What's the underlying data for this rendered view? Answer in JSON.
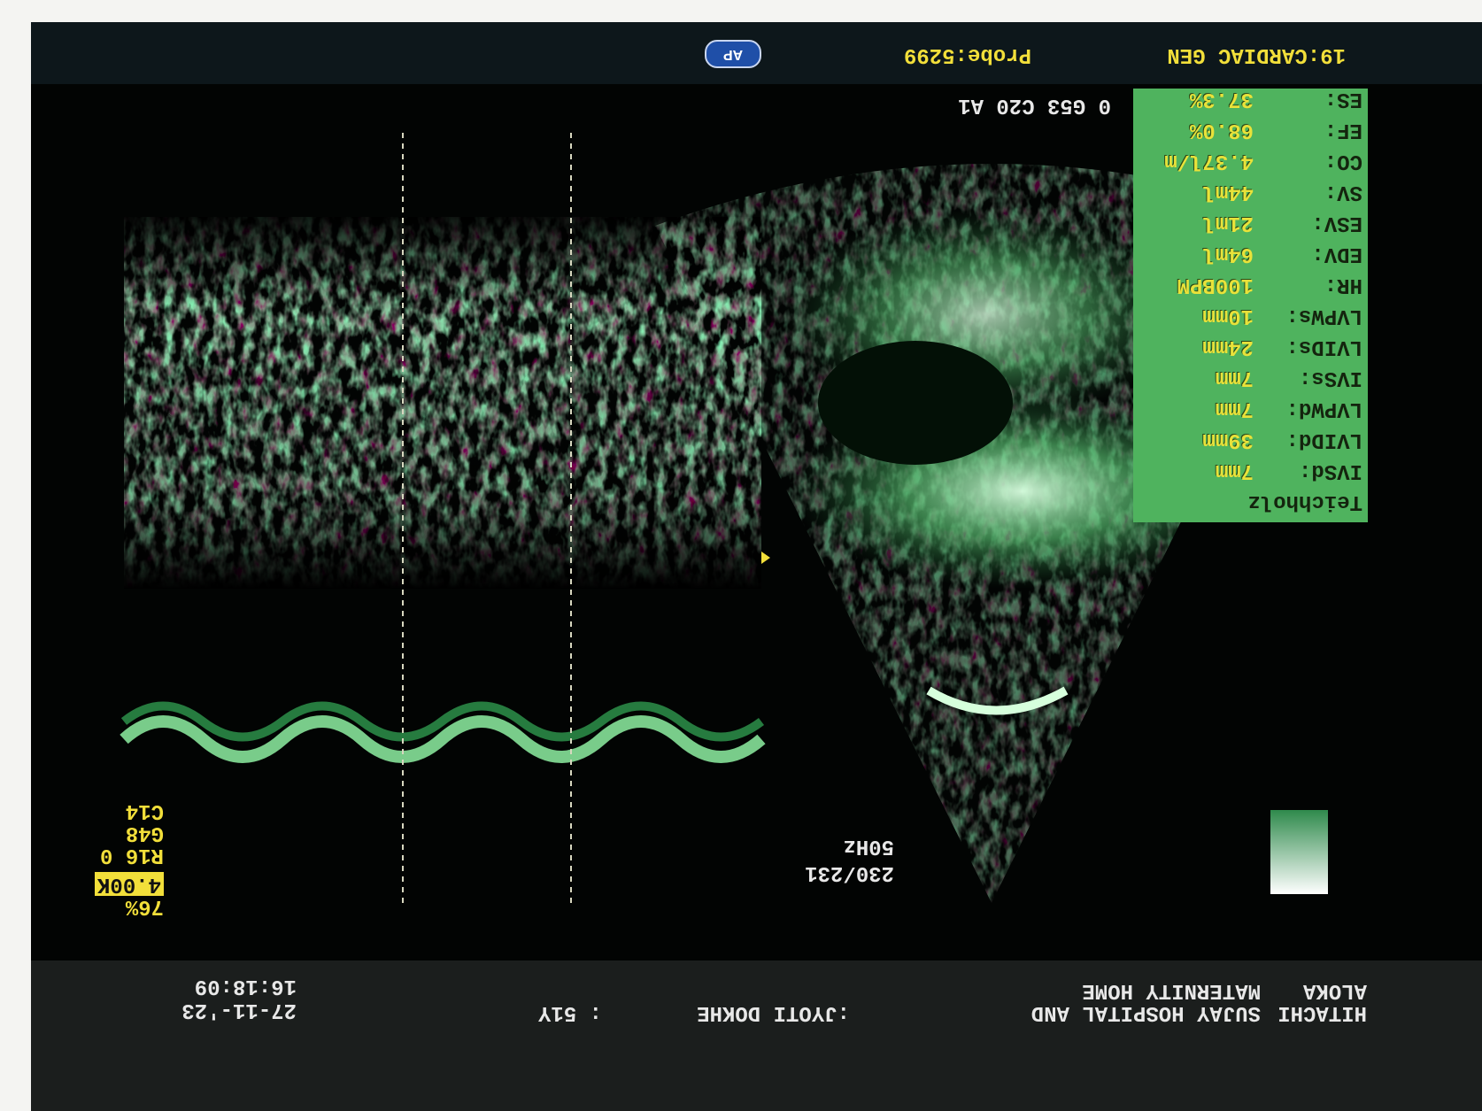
{
  "header": {
    "logo": [
      "HITACHI",
      "ALOKA"
    ],
    "hospital": [
      "SUJAY HOSPITAL AND",
      "MATERNITY HOME"
    ],
    "patient_name": ":JYOTI DOKHE",
    "patient_age": ": 51Y",
    "date": "27-11-'23",
    "time": "16:18:09"
  },
  "footer": {
    "preset": "19:CARDIAC GEN",
    "probe": "Probe:5299",
    "badge": "AP"
  },
  "image_params": "0 G53 C20 A1",
  "settings": [
    "76%",
    "4.00K",
    "R16 0",
    "G48",
    "C14"
  ],
  "frame_rate": [
    "230/231",
    "50Hz"
  ],
  "measurements": {
    "title": "Teichholz",
    "rows": [
      [
        "IVSd:",
        "7mm"
      ],
      [
        "LVIDd:",
        "39mm"
      ],
      [
        "LVPWd:",
        "7mm"
      ],
      [
        "IVSs:",
        "7mm"
      ],
      [
        "LVIDs:",
        "24mm"
      ],
      [
        "LVPWs:",
        "10mm"
      ],
      [
        "HR:",
        "100BPM"
      ],
      [
        "EDV:",
        "64ml"
      ],
      [
        "ESV:",
        "21ml"
      ],
      [
        "SV:",
        "44ml"
      ],
      [
        "CO:",
        "4.37l/m"
      ],
      [
        "EF:",
        "68.0%"
      ],
      [
        "ES:",
        "37.3%"
      ]
    ]
  }
}
